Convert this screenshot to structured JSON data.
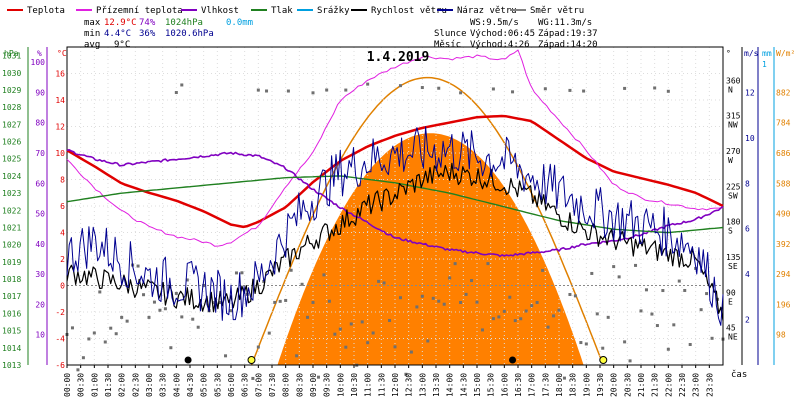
{
  "chart_data": {
    "type": "line",
    "title": "1.4.2019",
    "xlabel": "čas",
    "x_ticks": [
      "00:00",
      "00:30",
      "01:00",
      "01:30",
      "02:00",
      "02:30",
      "03:00",
      "03:30",
      "04:00",
      "04:30",
      "05:00",
      "05:30",
      "06:00",
      "06:30",
      "07:00",
      "07:30",
      "08:00",
      "08:30",
      "09:00",
      "09:30",
      "10:00",
      "10:30",
      "11:00",
      "11:30",
      "12:00",
      "12:30",
      "13:00",
      "13:30",
      "14:00",
      "14:30",
      "15:00",
      "15:30",
      "16:00",
      "16:30",
      "17:00",
      "17:30",
      "18:00",
      "18:30",
      "19:00",
      "19:30",
      "20:00",
      "20:30",
      "21:00",
      "21:30",
      "22:00",
      "22:30",
      "23:00",
      "23:30"
    ],
    "legend": [
      {
        "label": "Teplota",
        "color": "#e00000"
      },
      {
        "label": "Přízemní teplota",
        "color": "#e020e0"
      },
      {
        "label": "Vlhkost",
        "color": "#8000c0"
      },
      {
        "label": "Tlak",
        "color": "#208020"
      },
      {
        "label": "Srážky",
        "color": "#00a0e0"
      },
      {
        "label": "Rychlost větru",
        "color": "#000000"
      },
      {
        "label": "Náraz větru",
        "color": "#000090"
      },
      {
        "label": "Směr větru",
        "color": "#808080"
      }
    ],
    "stats": {
      "max": {
        "label": "max",
        "temp": "12.9°C",
        "hum": "74%",
        "press": "1024hPa",
        "rain": "0.0mm"
      },
      "min": {
        "label": "min",
        "temp": "4.4°C",
        "hum": "36%",
        "press": "1020.6hPa"
      },
      "avg": {
        "label": "avg",
        "temp": "9°C"
      }
    },
    "wind_info": {
      "ws": "WS:9.5m/s",
      "wg": "WG:11.3m/s"
    },
    "sun_info": {
      "label": "Slunce",
      "rise": "Východ:06:45",
      "set": "Západ:19:37"
    },
    "moon_info": {
      "label": "Měsíc",
      "rise": "Východ:4:26",
      "set": "Západ:14:20"
    },
    "axes": {
      "hpa": {
        "unit": "hPa",
        "ticks": [
          "1031",
          "1030",
          "1029",
          "1028",
          "1027",
          "1026",
          "1025",
          "1024",
          "1023",
          "1022",
          "1021",
          "1020",
          "1019",
          "1018",
          "1017",
          "1016",
          "1015",
          "1014",
          "1013"
        ]
      },
      "pct": {
        "unit": "%",
        "ticks": [
          "100",
          "90",
          "80",
          "70",
          "60",
          "50",
          "40",
          "30",
          "20",
          "10"
        ]
      },
      "temp": {
        "unit": "°C",
        "ticks": [
          "16",
          "14",
          "12",
          "10",
          "8",
          "6",
          "4",
          "2",
          "0",
          "-2",
          "-4",
          "-6"
        ]
      },
      "dir": {
        "unit": "°",
        "ticks": [
          {
            "deg": "360",
            "card": "N"
          },
          {
            "deg": "315",
            "card": "NW"
          },
          {
            "deg": "270",
            "card": "W"
          },
          {
            "deg": "225",
            "card": "SW"
          },
          {
            "deg": "180",
            "card": "S"
          },
          {
            "deg": "135",
            "card": "SE"
          },
          {
            "deg": "90",
            "card": "E"
          },
          {
            "deg": "45",
            "card": "NE"
          }
        ]
      },
      "ms": {
        "unit": "m/s",
        "ticks": [
          "12",
          "10",
          "8",
          "6",
          "4",
          "2"
        ]
      },
      "mm": {
        "unit": "mm",
        "ticks": [
          "1"
        ]
      },
      "wm2": {
        "unit": "W/m²",
        "ticks": [
          "882",
          "784",
          "686",
          "588",
          "490",
          "392",
          "294",
          "196",
          "98"
        ]
      }
    },
    "temp_range": [
      -6,
      18
    ],
    "hum_range": [
      0,
      105
    ],
    "press_range": [
      1013,
      1031.5
    ],
    "wind_range": [
      0,
      14
    ],
    "dir_range": [
      0,
      405
    ],
    "solar_range": [
      0,
      1029
    ],
    "series": [
      {
        "name": "Teplota",
        "color": "#e00000",
        "hours": [
          0,
          1,
          2,
          3,
          4,
          5,
          6,
          6.5,
          7,
          8,
          9,
          10,
          11,
          12,
          13,
          14,
          15,
          16,
          17,
          18,
          19,
          20,
          21,
          22,
          23,
          24
        ],
        "values": [
          10.2,
          9.0,
          7.7,
          7.0,
          6.4,
          5.6,
          4.6,
          4.4,
          4.8,
          5.9,
          7.8,
          9.4,
          10.5,
          11.3,
          11.9,
          12.3,
          12.7,
          12.8,
          12.4,
          11.0,
          9.6,
          8.6,
          8.1,
          7.6,
          7.0,
          6.0
        ]
      },
      {
        "name": "Přízemní teplota",
        "color": "#e020e0",
        "hours": [
          0,
          1,
          2,
          3,
          4,
          5,
          5.5,
          6,
          7,
          8,
          9,
          10,
          11,
          12,
          13,
          14,
          15,
          16,
          16.5,
          17,
          18,
          19,
          20,
          21,
          22,
          23,
          24
        ],
        "values": [
          9.5,
          7.4,
          5.6,
          4.4,
          3.7,
          3.3,
          3.0,
          3.3,
          4.5,
          7.5,
          10.0,
          14.0,
          15.5,
          16.5,
          17.3,
          17.1,
          17.3,
          17.0,
          17.8,
          14.8,
          12.5,
          10.2,
          7.6,
          6.6,
          6.2,
          5.8,
          5.8
        ]
      },
      {
        "name": "Vlhkost",
        "color": "#8000c0",
        "hours": [
          0,
          1,
          2,
          3,
          4,
          5,
          6,
          7,
          8,
          9,
          10,
          11,
          12,
          13,
          14,
          15,
          16,
          17,
          18,
          19,
          20,
          21,
          22,
          23,
          24
        ],
        "values": [
          71,
          68,
          66,
          67,
          68,
          69,
          70,
          69,
          65,
          58,
          52,
          47,
          42,
          40,
          38,
          37,
          36,
          37,
          38,
          40,
          41,
          43,
          46,
          48,
          52
        ]
      },
      {
        "name": "Tlak",
        "color": "#208020",
        "hours": [
          0,
          2,
          4,
          6,
          8,
          10,
          12,
          14,
          16,
          18,
          20,
          22,
          24
        ],
        "values": [
          1022.5,
          1023.0,
          1023.3,
          1023.6,
          1023.9,
          1024.0,
          1023.6,
          1023.0,
          1022.2,
          1021.4,
          1020.9,
          1020.7,
          1021.0
        ]
      },
      {
        "name": "Rychlost větru",
        "color": "#000000",
        "hours": [
          0,
          2,
          4,
          6,
          7,
          8,
          9,
          10,
          11,
          12,
          13,
          14,
          15,
          16,
          17,
          18,
          19,
          20,
          21,
          22,
          23,
          24
        ],
        "values": [
          4.1,
          3.6,
          3.0,
          2.7,
          3.5,
          4.6,
          5.5,
          6.2,
          7.0,
          7.5,
          8.2,
          8.5,
          8.3,
          8.0,
          7.4,
          6.6,
          5.9,
          5.5,
          5.2,
          4.9,
          4.6,
          2.2
        ]
      },
      {
        "name": "Náraz větru",
        "color": "#000090",
        "hours": [
          0,
          1,
          2,
          3,
          4,
          5,
          6,
          7,
          8,
          9,
          10,
          11,
          12,
          13,
          14,
          15,
          16,
          17,
          18,
          19,
          20,
          21,
          22,
          23,
          24
        ],
        "values": [
          4.8,
          5.5,
          4.6,
          3.9,
          3.6,
          3.4,
          2.9,
          3.7,
          5.8,
          7.4,
          8.5,
          9.0,
          9.3,
          9.4,
          9.5,
          9.2,
          9.0,
          8.3,
          7.6,
          7.0,
          6.5,
          6.2,
          5.8,
          5.2,
          2.5
        ]
      }
    ],
    "solar": {
      "name": "Solar radiation",
      "color": "#ff8000",
      "peak_hour": 13.3,
      "peak_value": 750
    },
    "clear_sky": {
      "color": "#e08000",
      "rise_hour": 6.75,
      "set_hour": 19.62,
      "peak_value": 930
    },
    "wind_direction_points": {
      "color": "#707070",
      "base_deg": 40,
      "spread_deg": 60,
      "upper_hours_from": 17.2,
      "upper_deg": 352
    }
  }
}
